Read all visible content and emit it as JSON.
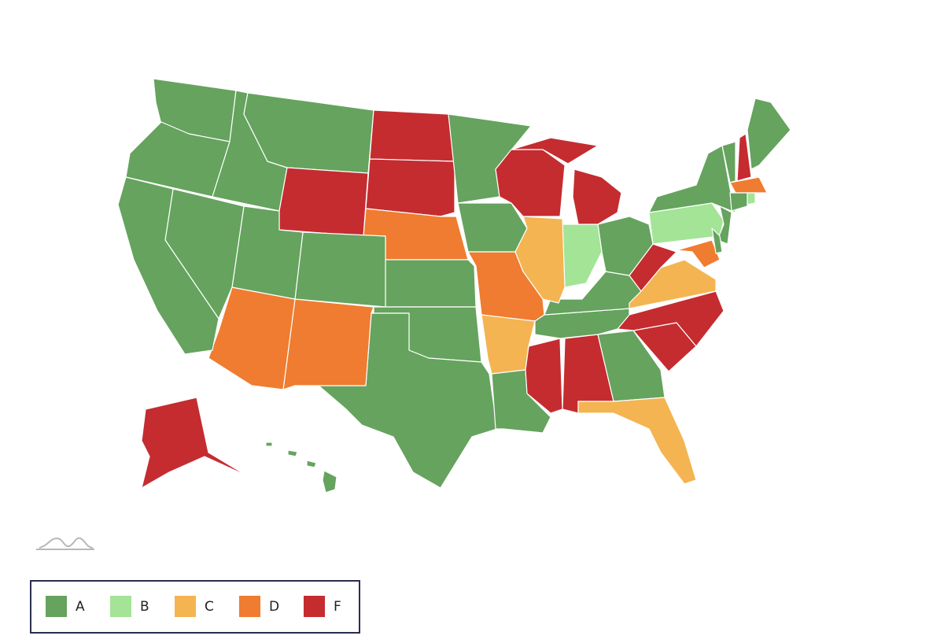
{
  "legend": [
    {
      "label": "A",
      "color": "#65a35e"
    },
    {
      "label": "B",
      "color": "#a3e496"
    },
    {
      "label": "C",
      "color": "#f4b451"
    },
    {
      "label": "D",
      "color": "#ef7c30"
    },
    {
      "label": "F",
      "color": "#c42c30"
    }
  ],
  "regions": [
    "A",
    "A",
    "A",
    "A",
    "F",
    "F",
    "F",
    "D",
    "A",
    "A",
    "A",
    "D",
    "D",
    "A",
    "A",
    "A",
    "A",
    "A",
    "A",
    "D",
    "C",
    "A",
    "F",
    "F",
    "A",
    "C",
    "F",
    "F",
    "A",
    "A",
    "C",
    "F",
    "A",
    "B",
    "C",
    "F",
    "F",
    "B",
    "A",
    "A",
    "F",
    "A",
    "D",
    "A",
    "B",
    "A",
    "D",
    "A",
    "F",
    "A"
  ]
}
